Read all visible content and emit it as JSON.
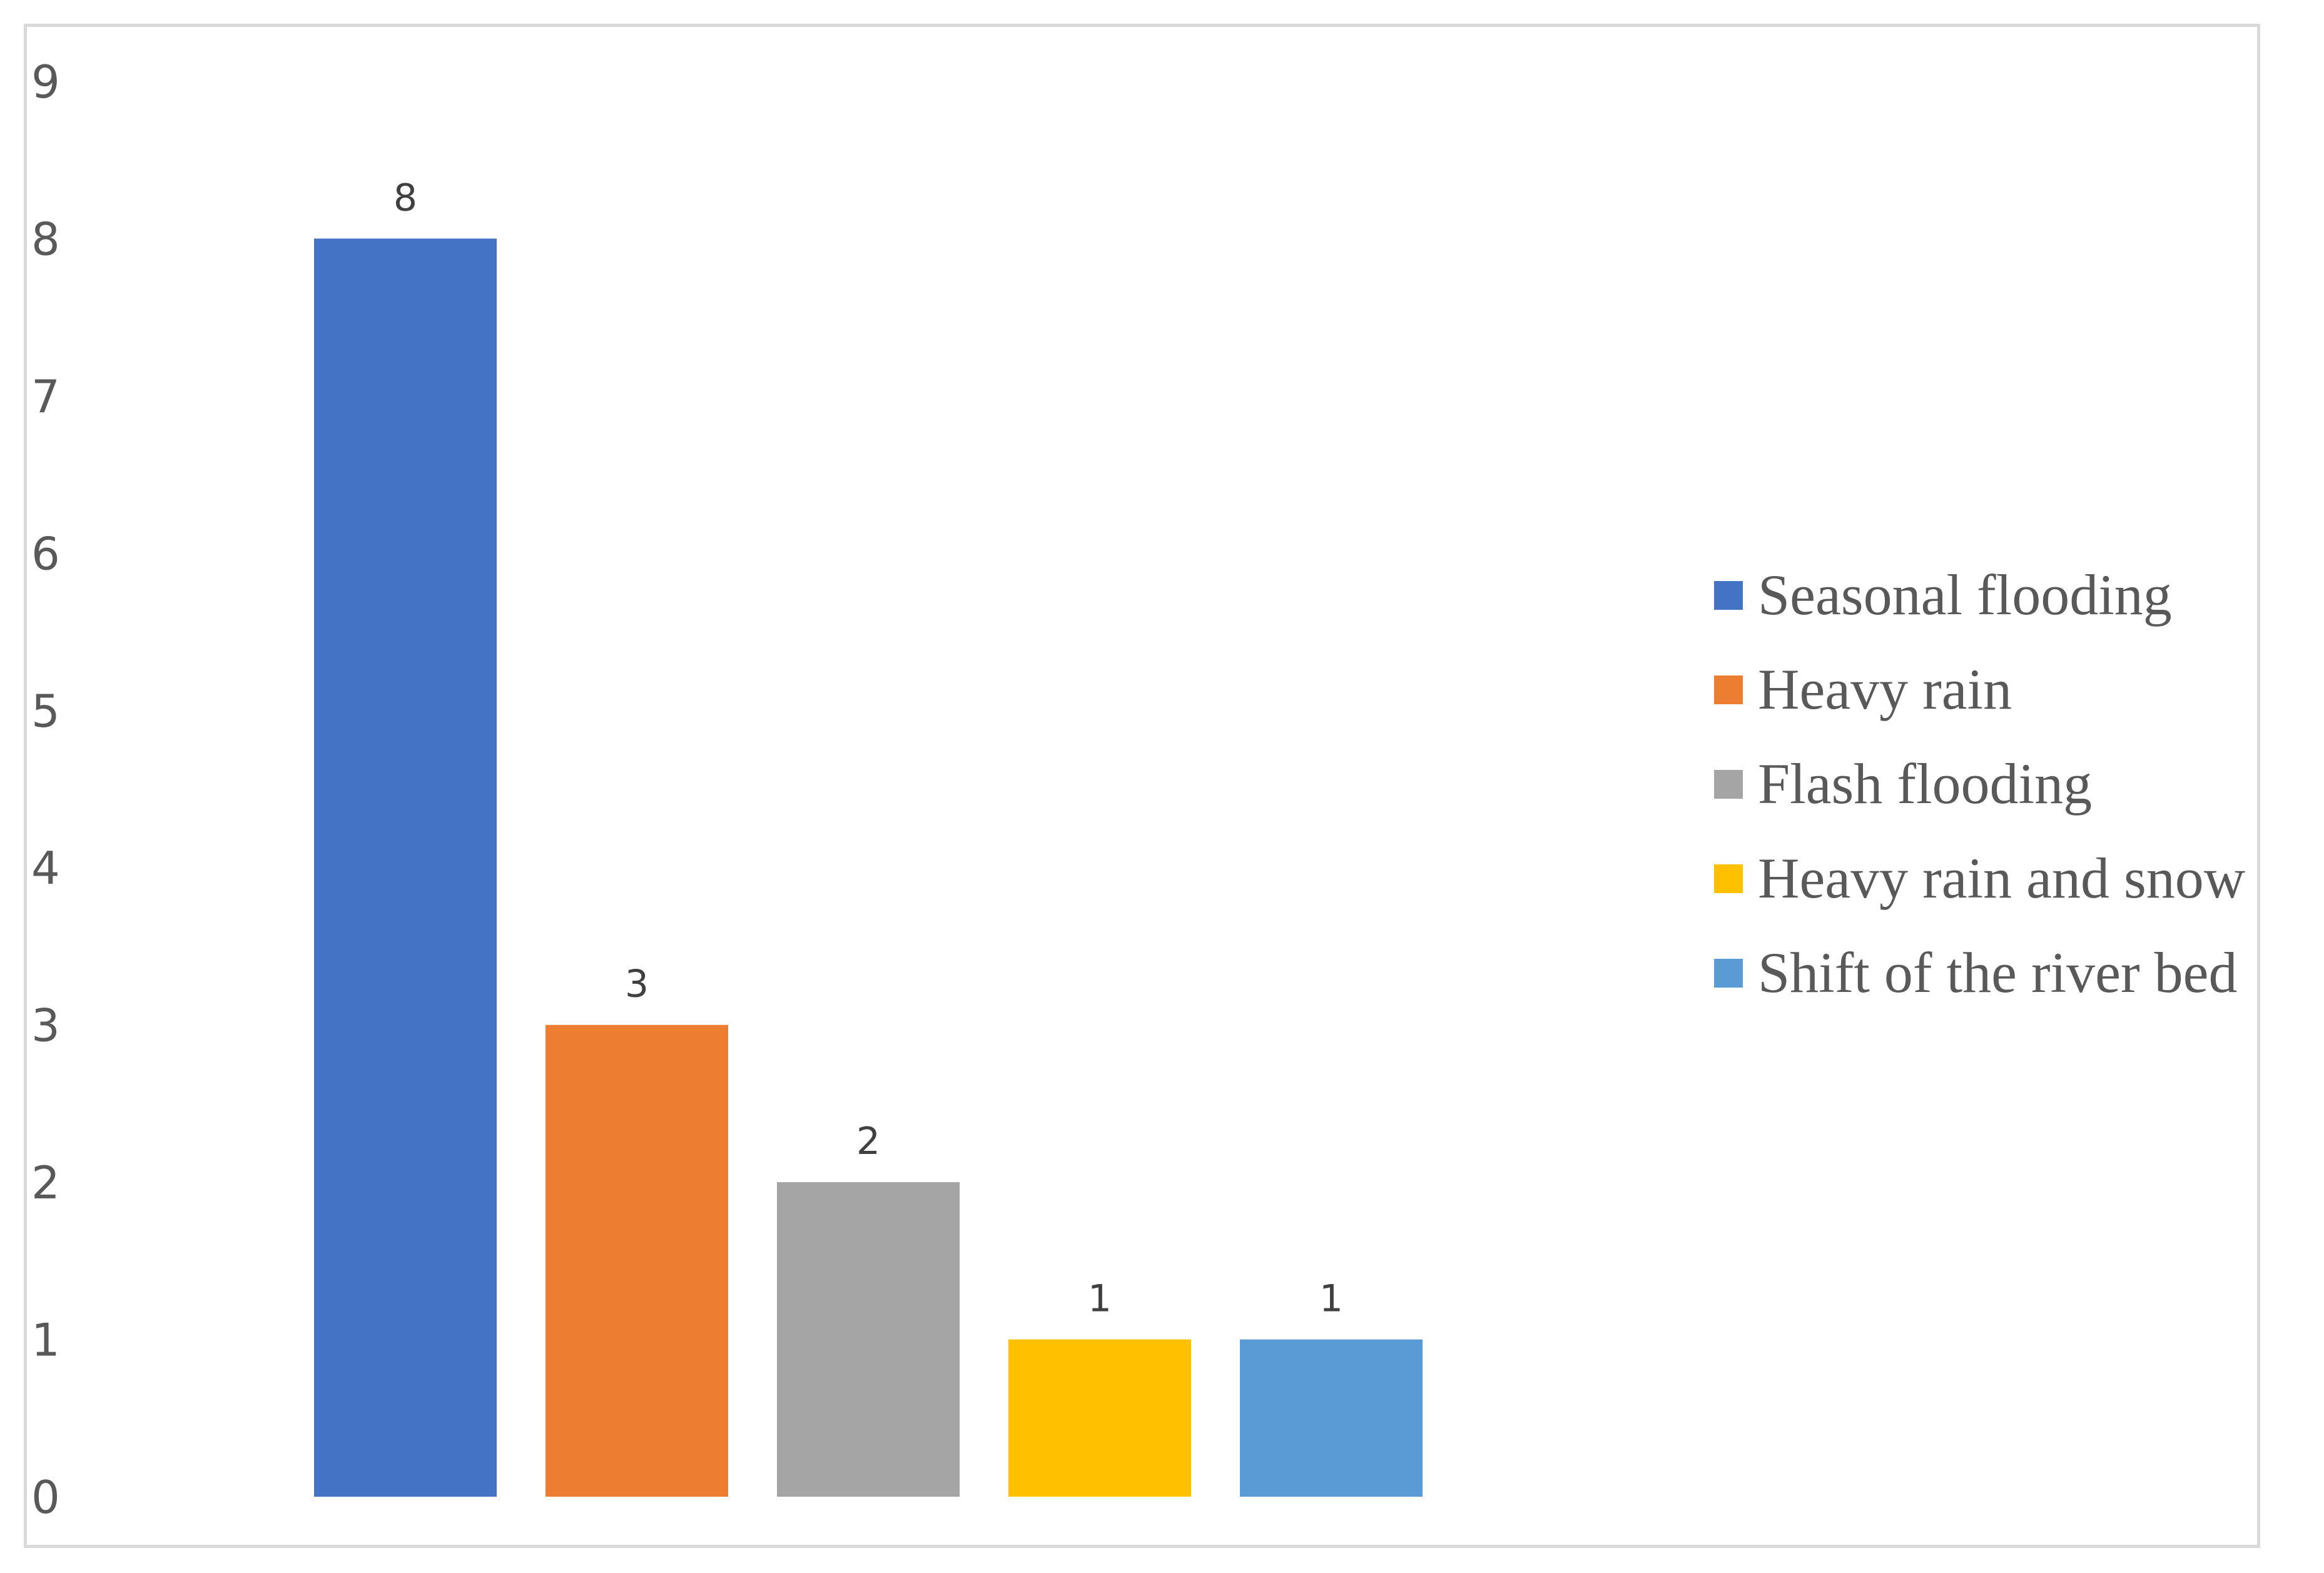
{
  "chart_data": {
    "type": "bar",
    "categories": [
      "Seasonal flooding",
      "Heavy rain",
      "Flash flooding",
      "Heavy rain and snow",
      "Shift of the river bed"
    ],
    "values": [
      8,
      3,
      2,
      1,
      1
    ],
    "colors": [
      "#4472c4",
      "#ed7d31",
      "#a5a5a5",
      "#ffc000",
      "#5b9bd5"
    ],
    "title": "",
    "xlabel": "",
    "ylabel": "",
    "ylim": [
      0,
      9
    ],
    "yticks": [
      "0",
      "1",
      "2",
      "3",
      "4",
      "5",
      "6",
      "7",
      "8",
      "9"
    ],
    "data_labels": [
      "8",
      "3",
      "2",
      "1",
      "1"
    ],
    "grid": false,
    "legend_position": "right"
  }
}
